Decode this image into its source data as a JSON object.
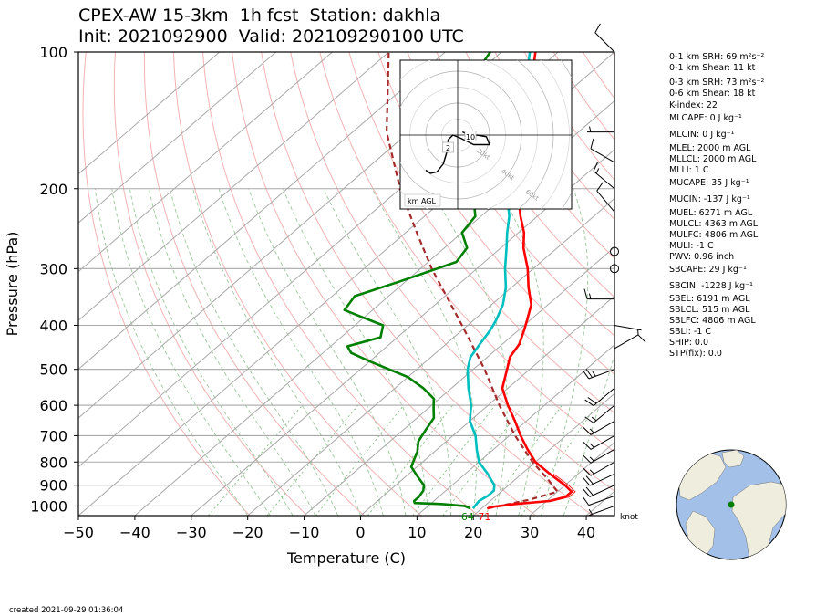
{
  "title": {
    "line1": "CPEX-AW 15-3km  1h fcst  Station: dakhla",
    "line2": "Init: 2021092900  Valid: 202109290100 UTC"
  },
  "chart_data": {
    "type": "skew-t",
    "xlabel": "Temperature (C)",
    "ylabel": "Pressure (hPa)",
    "x_ticks": [
      -50,
      -40,
      -30,
      -20,
      -10,
      0,
      10,
      20,
      30,
      40
    ],
    "y_ticks": [
      100,
      200,
      300,
      400,
      500,
      600,
      700,
      800,
      900,
      1000
    ],
    "xlim": [
      -50,
      45
    ],
    "ylim": [
      1050,
      100
    ],
    "grid": true,
    "series": [
      {
        "role": "temperature",
        "color": "#ff0000",
        "points": [
          [
            1013,
            21
          ],
          [
            1005,
            21.5
          ],
          [
            990,
            25
          ],
          [
            975,
            30.5
          ],
          [
            955,
            32.5
          ],
          [
            930,
            32.5
          ],
          [
            900,
            30
          ],
          [
            850,
            25
          ],
          [
            800,
            20
          ],
          [
            750,
            16
          ],
          [
            700,
            12
          ],
          [
            650,
            8
          ],
          [
            600,
            3.5
          ],
          [
            550,
            -1
          ],
          [
            500,
            -4
          ],
          [
            470,
            -6
          ],
          [
            440,
            -7
          ],
          [
            410,
            -9
          ],
          [
            390,
            -10.5
          ],
          [
            360,
            -13
          ],
          [
            330,
            -17
          ],
          [
            300,
            -21
          ],
          [
            270,
            -26
          ],
          [
            250,
            -29
          ],
          [
            230,
            -33
          ],
          [
            210,
            -37
          ],
          [
            195,
            -40
          ],
          [
            180,
            -43
          ],
          [
            170,
            -46
          ],
          [
            160,
            -48
          ],
          [
            140,
            -51
          ],
          [
            125,
            -55
          ],
          [
            115,
            -59
          ],
          [
            100,
            -64
          ]
        ]
      },
      {
        "role": "dewpoint",
        "color": "#008000",
        "points": [
          [
            1013,
            18
          ],
          [
            1000,
            16.5
          ],
          [
            990,
            12
          ],
          [
            985,
            7
          ],
          [
            975,
            6.5
          ],
          [
            955,
            6.5
          ],
          [
            925,
            6
          ],
          [
            900,
            5
          ],
          [
            860,
            2
          ],
          [
            820,
            -1
          ],
          [
            790,
            -2
          ],
          [
            760,
            -3
          ],
          [
            720,
            -5
          ],
          [
            680,
            -6
          ],
          [
            640,
            -7
          ],
          [
            610,
            -9
          ],
          [
            580,
            -11
          ],
          [
            550,
            -15
          ],
          [
            520,
            -20
          ],
          [
            480,
            -30
          ],
          [
            460,
            -35
          ],
          [
            445,
            -37
          ],
          [
            425,
            -33
          ],
          [
            400,
            -35
          ],
          [
            385,
            -40
          ],
          [
            370,
            -45
          ],
          [
            345,
            -46
          ],
          [
            320,
            -41
          ],
          [
            290,
            -35
          ],
          [
            270,
            -36
          ],
          [
            250,
            -40
          ],
          [
            230,
            -41
          ],
          [
            210,
            -45
          ],
          [
            190,
            -52
          ],
          [
            175,
            -58
          ],
          [
            155,
            -65
          ],
          [
            120,
            -69
          ],
          [
            100,
            -72
          ]
        ]
      },
      {
        "role": "wetbulb",
        "color": "#00bfbf",
        "points": [
          [
            1013,
            18.5
          ],
          [
            1000,
            18.3
          ],
          [
            975,
            18
          ],
          [
            950,
            18.5
          ],
          [
            925,
            18.5
          ],
          [
            900,
            17.5
          ],
          [
            850,
            14
          ],
          [
            800,
            10
          ],
          [
            750,
            7
          ],
          [
            700,
            4
          ],
          [
            650,
            0
          ],
          [
            600,
            -3
          ],
          [
            550,
            -7
          ],
          [
            500,
            -11
          ],
          [
            470,
            -13
          ],
          [
            440,
            -14
          ],
          [
            410,
            -15
          ],
          [
            390,
            -16
          ],
          [
            360,
            -18
          ],
          [
            330,
            -21
          ],
          [
            300,
            -25
          ],
          [
            270,
            -29
          ],
          [
            250,
            -32
          ],
          [
            230,
            -35
          ],
          [
            210,
            -39
          ],
          [
            195,
            -42
          ],
          [
            180,
            -44.5
          ],
          [
            170,
            -47
          ],
          [
            160,
            -49
          ],
          [
            140,
            -52
          ],
          [
            125,
            -56
          ],
          [
            115,
            -60
          ],
          [
            100,
            -65
          ]
        ]
      },
      {
        "role": "parcel",
        "color": "#a52a2a",
        "points": [
          [
            1013,
            21
          ],
          [
            970,
            26.5
          ],
          [
            930,
            30
          ],
          [
            870,
            25.5
          ],
          [
            800,
            19.5
          ],
          [
            700,
            11
          ],
          [
            600,
            2
          ],
          [
            500,
            -8
          ],
          [
            400,
            -21
          ],
          [
            300,
            -38
          ],
          [
            250,
            -48
          ],
          [
            200,
            -60
          ],
          [
            150,
            -74
          ],
          [
            100,
            -90
          ]
        ]
      }
    ],
    "surface_labels": [
      {
        "text": "64",
        "color": "#008000"
      },
      {
        "text": "71",
        "color": "#ff0000"
      }
    ],
    "wind_unit": "knot",
    "wind_barbs": [
      {
        "p": 100,
        "spd": 10,
        "dir": 315
      },
      {
        "p": 150,
        "spd": 5,
        "dir": 270
      },
      {
        "p": 175,
        "spd": 10,
        "dir": 300
      },
      {
        "p": 200,
        "spd": 15,
        "dir": 310
      },
      {
        "p": 225,
        "spd": 10,
        "dir": 320
      },
      {
        "p": 275,
        "spd": 0,
        "dir": 0
      },
      {
        "p": 300,
        "spd": 0,
        "dir": 0
      },
      {
        "p": 350,
        "spd": 15,
        "dir": 270
      },
      {
        "p": 400,
        "spd": 5,
        "dir": 100
      },
      {
        "p": 450,
        "spd": 10,
        "dir": 60
      },
      {
        "p": 500,
        "spd": 25,
        "dir": 250
      },
      {
        "p": 550,
        "spd": 20,
        "dir": 230
      },
      {
        "p": 600,
        "spd": 15,
        "dir": 230
      },
      {
        "p": 650,
        "spd": 15,
        "dir": 240
      },
      {
        "p": 700,
        "spd": 15,
        "dir": 240
      },
      {
        "p": 750,
        "spd": 15,
        "dir": 240
      },
      {
        "p": 800,
        "spd": 15,
        "dir": 240
      },
      {
        "p": 850,
        "spd": 20,
        "dir": 245
      },
      {
        "p": 900,
        "spd": 20,
        "dir": 245
      },
      {
        "p": 950,
        "spd": 10,
        "dir": 250
      },
      {
        "p": 1000,
        "spd": 5,
        "dir": 250
      }
    ],
    "hodograph": {
      "ring_labels": [
        "20kt",
        "40kt",
        "60kt",
        "80kt"
      ],
      "height_labels": [
        "10",
        "2"
      ],
      "legend": "km AGL",
      "points": [
        [
          3,
          2
        ],
        [
          5,
          1
        ],
        [
          8,
          -1
        ],
        [
          12,
          0
        ],
        [
          18,
          -1
        ],
        [
          20,
          -6
        ],
        [
          10,
          -6
        ],
        [
          2,
          -2
        ],
        [
          -3,
          0
        ],
        [
          -6,
          -3
        ],
        [
          -6,
          -8
        ],
        [
          -9,
          -18
        ],
        [
          -13,
          -23
        ],
        [
          -17,
          -24
        ],
        [
          -20,
          -22
        ]
      ]
    }
  },
  "indices": [
    {
      "text": "0-1 km SRH: 69 m²s⁻²"
    },
    {
      "text": "0-1 km Shear: 11 kt"
    },
    {
      "text": "0-3 km SRH: 73 m²s⁻²"
    },
    {
      "text": "0-6 km Shear: 18 kt"
    },
    {
      "text": "K-index: 22"
    },
    {
      "text": "MLCAPE: 0 J kg⁻¹"
    },
    {
      "text": "MLCIN: 0 J kg⁻¹"
    },
    {
      "text": "MLEL: 2000 m AGL"
    },
    {
      "text": "MLLCL: 2000 m AGL"
    },
    {
      "text": "MLLI: 1 C"
    },
    {
      "text": "MUCAPE: 35 J kg⁻¹"
    },
    {
      "text": "MUCIN: -137 J kg⁻¹"
    },
    {
      "text": "MUEL: 6271 m AGL"
    },
    {
      "text": "MULCL: 4363 m AGL"
    },
    {
      "text": "MULFC: 4806 m AGL"
    },
    {
      "text": "MULI: -1 C"
    },
    {
      "text": "PWV: 0.96 inch"
    },
    {
      "text": "SBCAPE: 29 J kg⁻¹"
    },
    {
      "text": "SBCIN: -1228 J kg⁻¹"
    },
    {
      "text": "SBEL: 6191 m AGL"
    },
    {
      "text": "SBLCL: 515 m AGL"
    },
    {
      "text": "SBLFC: 4806 m AGL"
    },
    {
      "text": "SBLI: -1 C"
    },
    {
      "text": "SHIP: 0.0"
    },
    {
      "text": "STP(fix): 0.0"
    }
  ],
  "locator_map": {
    "ocean_color": "#a3c1e8",
    "land_color": "#efedde",
    "marker_color": "#008000"
  },
  "credit": "created 2021-09-29 01:36:04"
}
